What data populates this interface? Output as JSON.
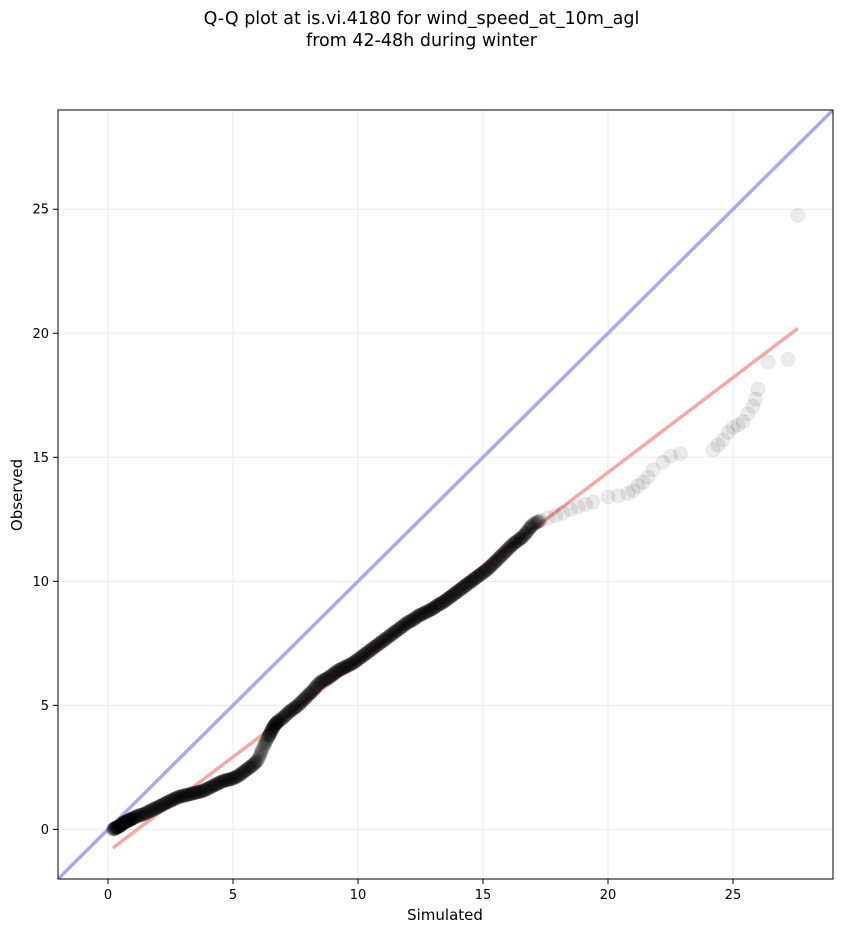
{
  "chart_data": {
    "type": "scatter",
    "title": [
      "Q-Q plot at is.vi.4180 for wind_speed_at_10m_agl",
      "from 42-48h during winter"
    ],
    "xlabel": "Simulated",
    "ylabel": "Observed",
    "xlim": [
      -2,
      29
    ],
    "ylim": [
      -2,
      29
    ],
    "xticks": [
      0,
      5,
      10,
      15,
      20,
      25
    ],
    "yticks": [
      0,
      5,
      10,
      15,
      20,
      25
    ],
    "grid": true,
    "legend": "none",
    "identity_line": {
      "x": [
        -2,
        29
      ],
      "y": [
        -2,
        29
      ],
      "color": "#aaaaf0"
    },
    "fit_line": {
      "x": [
        0.2,
        27.6
      ],
      "y": [
        -0.75,
        20.2
      ],
      "color": "#f4a8a8"
    },
    "fit_line_dark_segment": {
      "x": [
        7.5,
        17
      ],
      "y": [
        4.9,
        12.2
      ],
      "color": "#b03030"
    },
    "point_color": "#000000",
    "points": {
      "x": [
        0.2,
        0.3,
        0.4,
        0.5,
        0.6,
        0.7,
        0.8,
        0.9,
        1.0,
        1.2,
        1.4,
        1.6,
        1.8,
        2.0,
        2.2,
        2.4,
        2.6,
        2.8,
        3.0,
        3.2,
        3.4,
        3.6,
        3.8,
        4.0,
        4.2,
        4.4,
        4.6,
        4.8,
        5.0,
        5.2,
        5.4,
        5.6,
        5.8,
        6.0,
        6.2,
        6.4,
        6.5,
        6.6,
        6.7,
        6.8,
        7.0,
        7.2,
        7.4,
        7.6,
        7.8,
        8.0,
        8.2,
        8.4,
        8.6,
        8.8,
        9.0,
        9.2,
        9.4,
        9.6,
        9.8,
        10.0,
        10.2,
        10.4,
        10.6,
        10.8,
        11.0,
        11.2,
        11.4,
        11.6,
        11.8,
        12.0,
        12.2,
        12.4,
        12.6,
        12.8,
        13.0,
        13.2,
        13.4,
        13.6,
        13.8,
        14.0,
        14.2,
        14.4,
        14.6,
        14.8,
        15.0,
        15.2,
        15.4,
        15.6,
        15.8,
        16.0,
        16.2,
        16.4,
        16.6,
        16.8,
        17.0,
        17.3,
        17.6,
        17.9,
        18.2,
        18.5,
        18.8,
        19.1,
        19.4,
        20.0,
        20.4,
        20.8,
        21.0,
        21.2,
        21.4,
        21.6,
        21.8,
        22.2,
        22.5,
        22.9,
        24.2,
        24.4,
        24.6,
        24.8,
        25.0,
        25.2,
        25.4,
        25.6,
        25.8,
        25.9,
        26.0,
        26.4,
        27.2,
        27.6
      ],
      "y": [
        0.0,
        0.05,
        0.1,
        0.15,
        0.25,
        0.3,
        0.35,
        0.4,
        0.45,
        0.55,
        0.6,
        0.7,
        0.8,
        0.9,
        1.0,
        1.1,
        1.2,
        1.3,
        1.35,
        1.4,
        1.45,
        1.5,
        1.55,
        1.65,
        1.75,
        1.85,
        1.95,
        2.0,
        2.05,
        2.15,
        2.3,
        2.45,
        2.6,
        2.8,
        3.3,
        3.7,
        3.9,
        4.1,
        4.25,
        4.35,
        4.5,
        4.7,
        4.85,
        5.0,
        5.2,
        5.4,
        5.6,
        5.85,
        6.0,
        6.1,
        6.25,
        6.4,
        6.5,
        6.6,
        6.7,
        6.85,
        7.0,
        7.15,
        7.3,
        7.45,
        7.6,
        7.75,
        7.9,
        8.05,
        8.2,
        8.35,
        8.45,
        8.6,
        8.7,
        8.8,
        8.9,
        9.05,
        9.15,
        9.3,
        9.45,
        9.6,
        9.75,
        9.9,
        10.05,
        10.2,
        10.35,
        10.5,
        10.7,
        10.9,
        11.1,
        11.3,
        11.5,
        11.65,
        11.8,
        12.05,
        12.3,
        12.45,
        12.55,
        12.65,
        12.75,
        12.9,
        13.0,
        13.1,
        13.2,
        13.4,
        13.45,
        13.55,
        13.65,
        13.85,
        14.0,
        14.2,
        14.5,
        14.8,
        15.05,
        15.15,
        15.3,
        15.5,
        15.7,
        16.0,
        16.2,
        16.3,
        16.45,
        16.75,
        17.05,
        17.35,
        17.75,
        18.85,
        18.95,
        24.75
      ]
    }
  }
}
